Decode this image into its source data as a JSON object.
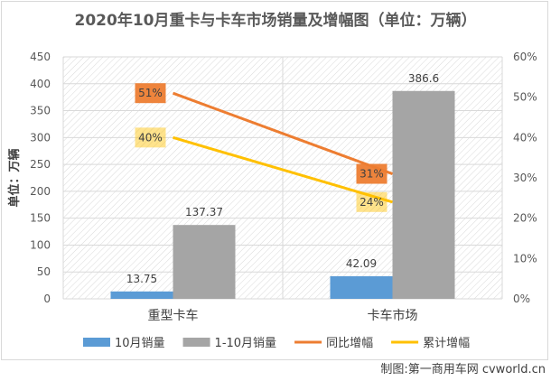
{
  "chart_data": {
    "type": "bar",
    "title": "2020年10月重卡与卡车市场销量及增幅图（单位：万辆）",
    "categories": [
      "重型卡车",
      "卡车市场"
    ],
    "series": [
      {
        "name": "10月销量",
        "type": "bar",
        "axis": "left",
        "values": [
          13.75,
          42.09
        ],
        "labels": [
          "13.75",
          "42.09"
        ],
        "color": "#5b9bd5"
      },
      {
        "name": "1-10月销量",
        "type": "bar",
        "axis": "left",
        "values": [
          137.37,
          386.6
        ],
        "labels": [
          "137.37",
          "386.6"
        ],
        "color": "#a5a5a5"
      },
      {
        "name": "同比增幅",
        "type": "line",
        "axis": "right",
        "values": [
          51,
          31
        ],
        "labels": [
          "51%",
          "31%"
        ],
        "color": "#ed7d31"
      },
      {
        "name": "累计增幅",
        "type": "line",
        "axis": "right",
        "values": [
          40,
          24
        ],
        "labels": [
          "40%",
          "24%"
        ],
        "color": "#ffc000"
      }
    ],
    "ylabel": "单位：万辆",
    "ylim": [
      0,
      450
    ],
    "yticks": [
      "0",
      "50",
      "100",
      "150",
      "200",
      "250",
      "300",
      "350",
      "400",
      "450"
    ],
    "y2lim": [
      0,
      60
    ],
    "y2ticks": [
      "0%",
      "10%",
      "20%",
      "30%",
      "40%",
      "50%",
      "60%"
    ],
    "grid": true,
    "legend": "bottom"
  },
  "credit": "制图:第一商用车网 cvworld.cn"
}
